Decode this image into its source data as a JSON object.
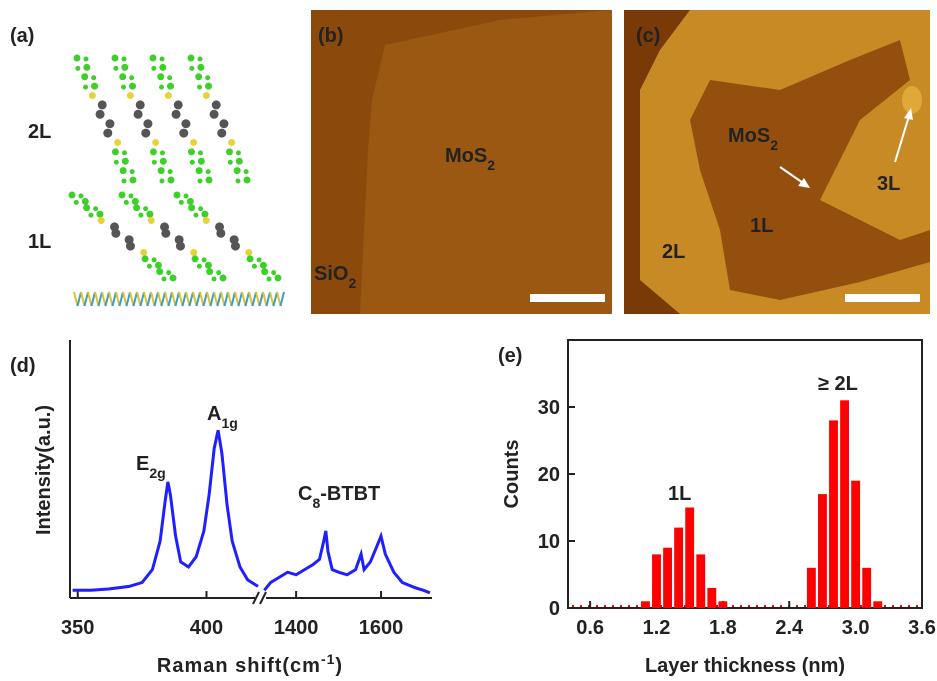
{
  "figure": {
    "panel_labels": [
      "(a)",
      "(b)",
      "(c)",
      "(d)",
      "(e)"
    ],
    "panel_a": {
      "layers": [
        "2L",
        "1L"
      ]
    },
    "panel_b": {
      "labels": [
        {
          "text": "MoS",
          "sub": "2"
        },
        {
          "text": "SiO",
          "sub": "2"
        }
      ]
    },
    "panel_c": {
      "labels": [
        {
          "text": "MoS",
          "sub": "2"
        },
        "1L",
        "2L",
        "3L"
      ]
    }
  },
  "chart_data": [
    {
      "type": "line",
      "axis_labels": {
        "y": "Intensity(a.u.)",
        "x": {
          "text": "Raman shift(cm",
          "sup": "-1",
          "after": ")"
        }
      },
      "annotations": [
        {
          "text": "E",
          "sub": "2g"
        },
        {
          "text": "A",
          "sub": "1g"
        },
        {
          "text": "C",
          "sub": "8",
          "after": "-BTBT"
        }
      ],
      "ylim": [
        0,
        100
      ],
      "axes": [
        {
          "xlim": [
            347,
            420
          ],
          "xticks": [
            350,
            400
          ]
        },
        {
          "xlim": [
            1322,
            1720
          ],
          "xticks": [
            1400,
            1600
          ]
        }
      ],
      "series": [
        {
          "color": "#1f1fff",
          "axis": 0,
          "x": [
            348,
            355,
            362,
            370,
            375,
            379,
            382,
            384,
            385,
            386,
            388,
            390,
            393,
            396,
            399,
            401,
            403,
            404.5,
            406,
            408,
            410,
            413,
            416,
            420
          ],
          "values": [
            3,
            3,
            3.5,
            4.5,
            6,
            11,
            22,
            38,
            45,
            40,
            24,
            14,
            12,
            16,
            26,
            40,
            58,
            65,
            56,
            36,
            22,
            12,
            7,
            4.5
          ]
        },
        {
          "color": "#1f1fff",
          "axis": 1,
          "x": [
            1325,
            1340,
            1360,
            1380,
            1400,
            1420,
            1440,
            1455,
            1465,
            1470,
            1475,
            1485,
            1500,
            1520,
            1540,
            1553,
            1560,
            1575,
            1590,
            1600,
            1610,
            1630,
            1650,
            1680,
            1700,
            1715
          ],
          "values": [
            3,
            6,
            8,
            10,
            9,
            11,
            13,
            15,
            22,
            26,
            18,
            11,
            10,
            9,
            11,
            17,
            11,
            14,
            20,
            24,
            17,
            10,
            6,
            4,
            3,
            2
          ]
        }
      ]
    },
    {
      "type": "bar",
      "x_label": "Layer thickness (nm)",
      "y_label": "Counts",
      "annotations": [
        "1L",
        "≥ 2L"
      ],
      "color": "#ff0000",
      "x": [
        1.1,
        1.2,
        1.3,
        1.4,
        1.5,
        1.6,
        1.7,
        1.8,
        2.6,
        2.7,
        2.8,
        2.9,
        3.0,
        3.1,
        3.2
      ],
      "values": [
        1,
        8,
        9,
        12,
        15,
        8,
        3,
        1,
        6,
        17,
        28,
        31,
        19,
        6,
        1
      ],
      "xlim": [
        0.4,
        3.6
      ],
      "ylim": [
        0,
        40
      ],
      "xticks": [
        0.6,
        1.2,
        1.8,
        2.4,
        {
          "value": 3,
          "label": "3.0"
        },
        3.6
      ],
      "yticks": [
        0,
        10,
        20,
        30
      ]
    }
  ]
}
